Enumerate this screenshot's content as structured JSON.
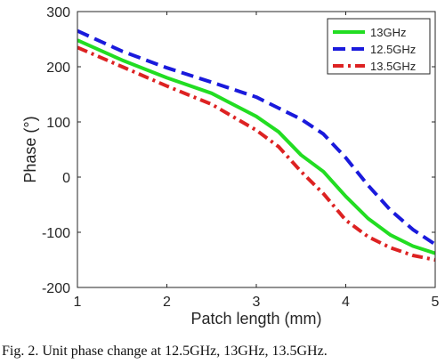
{
  "chart_data": {
    "type": "line",
    "title": "",
    "xlabel": "Patch length (mm)",
    "ylabel": "Phase (°)",
    "xlim": [
      1,
      5
    ],
    "ylim": [
      -200,
      300
    ],
    "xticks": [
      "1",
      "2",
      "3",
      "4",
      "5"
    ],
    "yticks": [
      "300",
      "200",
      "100",
      "0",
      "-100",
      "-200"
    ],
    "grid": false,
    "legend_position": "top-right",
    "x": [
      1,
      1.5,
      2,
      2.5,
      3,
      3.25,
      3.5,
      3.75,
      4,
      4.25,
      4.5,
      4.75,
      5
    ],
    "series": [
      {
        "name": "13GHz",
        "color": "#22dd22",
        "style": "solid",
        "values": [
          248,
          212,
          180,
          152,
          110,
          82,
          40,
          10,
          -35,
          -75,
          -105,
          -125,
          -138
        ]
      },
      {
        "name": "12.5GHz",
        "color": "#1a1adc",
        "style": "dashed",
        "values": [
          265,
          228,
          198,
          172,
          145,
          125,
          105,
          78,
          35,
          -15,
          -60,
          -95,
          -122
        ]
      },
      {
        "name": "13.5GHz",
        "color": "#dd2222",
        "style": "dash-dot",
        "values": [
          235,
          200,
          165,
          132,
          85,
          55,
          10,
          -30,
          -78,
          -108,
          -128,
          -142,
          -150
        ]
      }
    ]
  },
  "caption": "Fig. 2.   Unit phase change at 12.5GHz, 13GHz, 13.5GHz."
}
